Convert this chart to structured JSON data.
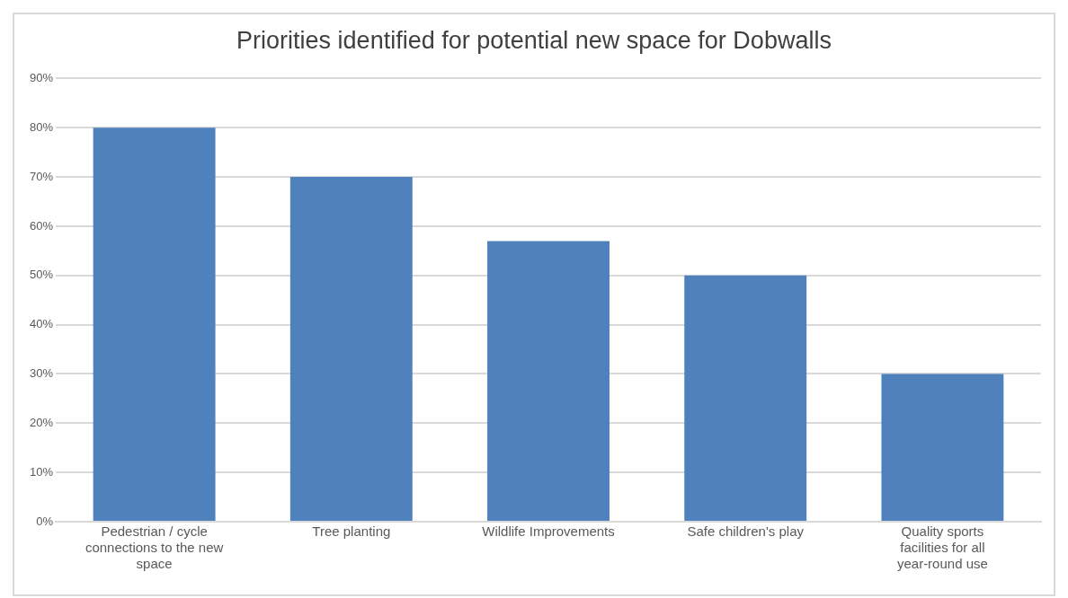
{
  "chart_data": {
    "type": "bar",
    "title": "Priorities identified for potential new space for Dobwalls",
    "categories": [
      "Pedestrian / cycle connections to the new space",
      "Tree planting",
      "Wildlife Improvements",
      "Safe children's play",
      "Quality sports facilities for all year-round use"
    ],
    "values": [
      80,
      70,
      57,
      50,
      30
    ],
    "color": "#4f81bd",
    "ylim": [
      0,
      90
    ],
    "yticks": [
      {
        "value": 0,
        "label": "0%"
      },
      {
        "value": 10,
        "label": "10%"
      },
      {
        "value": 20,
        "label": "20%"
      },
      {
        "value": 30,
        "label": "30%"
      },
      {
        "value": 40,
        "label": "40%"
      },
      {
        "value": 50,
        "label": "50%"
      },
      {
        "value": 60,
        "label": "60%"
      },
      {
        "value": 70,
        "label": "70%"
      },
      {
        "value": 80,
        "label": "80%"
      },
      {
        "value": 90,
        "label": "90%"
      }
    ],
    "grid": "y",
    "legend": false
  }
}
